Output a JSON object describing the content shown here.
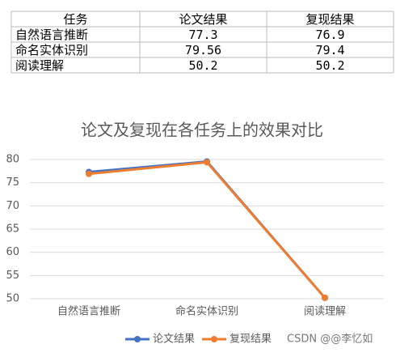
{
  "table": {
    "header": [
      "任务",
      "论文结果",
      "复现结果"
    ],
    "rows": [
      [
        "自然语言推断",
        "77.3",
        "76.9"
      ],
      [
        "命名实体识别",
        "79.56",
        "79.4"
      ],
      [
        "阅读理解",
        "50.2",
        "50.2"
      ]
    ]
  },
  "chart_data": {
    "type": "line",
    "title": "论文及复现在各任务上的效果对比",
    "categories": [
      "自然语言推断",
      "命名实体识别",
      "阅读理解"
    ],
    "series": [
      {
        "name": "论文结果",
        "color": "#4472c4",
        "values": [
          77.3,
          79.56,
          50.2
        ]
      },
      {
        "name": "复现结果",
        "color": "#ed7d31",
        "values": [
          76.9,
          79.4,
          50.2
        ]
      }
    ],
    "ylim": [
      50,
      80
    ],
    "yticks": [
      50,
      55,
      60,
      65,
      70,
      75,
      80
    ],
    "grid": true,
    "legend": "bottom"
  },
  "watermark": "CSDN @@李忆如"
}
